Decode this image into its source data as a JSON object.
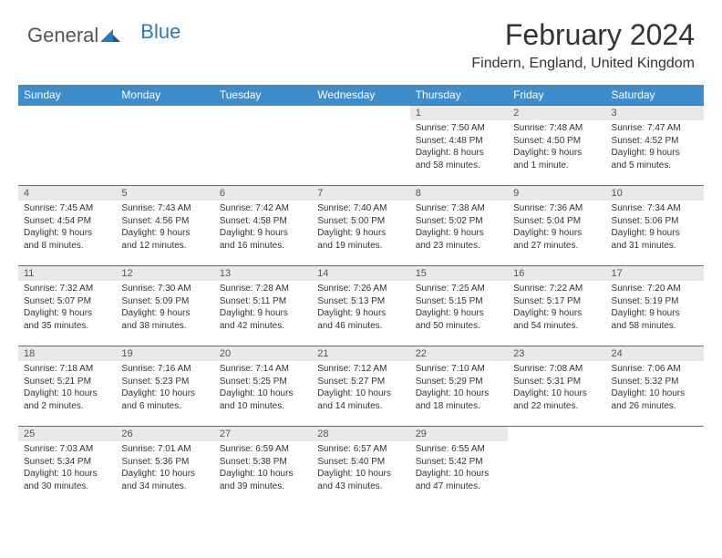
{
  "logo": {
    "t1": "General",
    "t2": "Blue"
  },
  "colors": {
    "header_bg": "#3f8cca",
    "header_text": "#ffffff",
    "daynum_bg": "#e9e9e9",
    "border": "#2a7ab9",
    "logo_gray": "#555555",
    "logo_blue": "#2a7ab9",
    "text": "#333333"
  },
  "title": "February 2024",
  "location": "Findern, England, United Kingdom",
  "weekdays": [
    "Sunday",
    "Monday",
    "Tuesday",
    "Wednesday",
    "Thursday",
    "Friday",
    "Saturday"
  ],
  "weeks": [
    [
      {
        "n": "",
        "sr": "",
        "ss": "",
        "d1": "",
        "d2": ""
      },
      {
        "n": "",
        "sr": "",
        "ss": "",
        "d1": "",
        "d2": ""
      },
      {
        "n": "",
        "sr": "",
        "ss": "",
        "d1": "",
        "d2": ""
      },
      {
        "n": "",
        "sr": "",
        "ss": "",
        "d1": "",
        "d2": ""
      },
      {
        "n": "1",
        "sr": "Sunrise: 7:50 AM",
        "ss": "Sunset: 4:48 PM",
        "d1": "Daylight: 8 hours",
        "d2": "and 58 minutes."
      },
      {
        "n": "2",
        "sr": "Sunrise: 7:48 AM",
        "ss": "Sunset: 4:50 PM",
        "d1": "Daylight: 9 hours",
        "d2": "and 1 minute."
      },
      {
        "n": "3",
        "sr": "Sunrise: 7:47 AM",
        "ss": "Sunset: 4:52 PM",
        "d1": "Daylight: 9 hours",
        "d2": "and 5 minutes."
      }
    ],
    [
      {
        "n": "4",
        "sr": "Sunrise: 7:45 AM",
        "ss": "Sunset: 4:54 PM",
        "d1": "Daylight: 9 hours",
        "d2": "and 8 minutes."
      },
      {
        "n": "5",
        "sr": "Sunrise: 7:43 AM",
        "ss": "Sunset: 4:56 PM",
        "d1": "Daylight: 9 hours",
        "d2": "and 12 minutes."
      },
      {
        "n": "6",
        "sr": "Sunrise: 7:42 AM",
        "ss": "Sunset: 4:58 PM",
        "d1": "Daylight: 9 hours",
        "d2": "and 16 minutes."
      },
      {
        "n": "7",
        "sr": "Sunrise: 7:40 AM",
        "ss": "Sunset: 5:00 PM",
        "d1": "Daylight: 9 hours",
        "d2": "and 19 minutes."
      },
      {
        "n": "8",
        "sr": "Sunrise: 7:38 AM",
        "ss": "Sunset: 5:02 PM",
        "d1": "Daylight: 9 hours",
        "d2": "and 23 minutes."
      },
      {
        "n": "9",
        "sr": "Sunrise: 7:36 AM",
        "ss": "Sunset: 5:04 PM",
        "d1": "Daylight: 9 hours",
        "d2": "and 27 minutes."
      },
      {
        "n": "10",
        "sr": "Sunrise: 7:34 AM",
        "ss": "Sunset: 5:06 PM",
        "d1": "Daylight: 9 hours",
        "d2": "and 31 minutes."
      }
    ],
    [
      {
        "n": "11",
        "sr": "Sunrise: 7:32 AM",
        "ss": "Sunset: 5:07 PM",
        "d1": "Daylight: 9 hours",
        "d2": "and 35 minutes."
      },
      {
        "n": "12",
        "sr": "Sunrise: 7:30 AM",
        "ss": "Sunset: 5:09 PM",
        "d1": "Daylight: 9 hours",
        "d2": "and 38 minutes."
      },
      {
        "n": "13",
        "sr": "Sunrise: 7:28 AM",
        "ss": "Sunset: 5:11 PM",
        "d1": "Daylight: 9 hours",
        "d2": "and 42 minutes."
      },
      {
        "n": "14",
        "sr": "Sunrise: 7:26 AM",
        "ss": "Sunset: 5:13 PM",
        "d1": "Daylight: 9 hours",
        "d2": "and 46 minutes."
      },
      {
        "n": "15",
        "sr": "Sunrise: 7:25 AM",
        "ss": "Sunset: 5:15 PM",
        "d1": "Daylight: 9 hours",
        "d2": "and 50 minutes."
      },
      {
        "n": "16",
        "sr": "Sunrise: 7:22 AM",
        "ss": "Sunset: 5:17 PM",
        "d1": "Daylight: 9 hours",
        "d2": "and 54 minutes."
      },
      {
        "n": "17",
        "sr": "Sunrise: 7:20 AM",
        "ss": "Sunset: 5:19 PM",
        "d1": "Daylight: 9 hours",
        "d2": "and 58 minutes."
      }
    ],
    [
      {
        "n": "18",
        "sr": "Sunrise: 7:18 AM",
        "ss": "Sunset: 5:21 PM",
        "d1": "Daylight: 10 hours",
        "d2": "and 2 minutes."
      },
      {
        "n": "19",
        "sr": "Sunrise: 7:16 AM",
        "ss": "Sunset: 5:23 PM",
        "d1": "Daylight: 10 hours",
        "d2": "and 6 minutes."
      },
      {
        "n": "20",
        "sr": "Sunrise: 7:14 AM",
        "ss": "Sunset: 5:25 PM",
        "d1": "Daylight: 10 hours",
        "d2": "and 10 minutes."
      },
      {
        "n": "21",
        "sr": "Sunrise: 7:12 AM",
        "ss": "Sunset: 5:27 PM",
        "d1": "Daylight: 10 hours",
        "d2": "and 14 minutes."
      },
      {
        "n": "22",
        "sr": "Sunrise: 7:10 AM",
        "ss": "Sunset: 5:29 PM",
        "d1": "Daylight: 10 hours",
        "d2": "and 18 minutes."
      },
      {
        "n": "23",
        "sr": "Sunrise: 7:08 AM",
        "ss": "Sunset: 5:31 PM",
        "d1": "Daylight: 10 hours",
        "d2": "and 22 minutes."
      },
      {
        "n": "24",
        "sr": "Sunrise: 7:06 AM",
        "ss": "Sunset: 5:32 PM",
        "d1": "Daylight: 10 hours",
        "d2": "and 26 minutes."
      }
    ],
    [
      {
        "n": "25",
        "sr": "Sunrise: 7:03 AM",
        "ss": "Sunset: 5:34 PM",
        "d1": "Daylight: 10 hours",
        "d2": "and 30 minutes."
      },
      {
        "n": "26",
        "sr": "Sunrise: 7:01 AM",
        "ss": "Sunset: 5:36 PM",
        "d1": "Daylight: 10 hours",
        "d2": "and 34 minutes."
      },
      {
        "n": "27",
        "sr": "Sunrise: 6:59 AM",
        "ss": "Sunset: 5:38 PM",
        "d1": "Daylight: 10 hours",
        "d2": "and 39 minutes."
      },
      {
        "n": "28",
        "sr": "Sunrise: 6:57 AM",
        "ss": "Sunset: 5:40 PM",
        "d1": "Daylight: 10 hours",
        "d2": "and 43 minutes."
      },
      {
        "n": "29",
        "sr": "Sunrise: 6:55 AM",
        "ss": "Sunset: 5:42 PM",
        "d1": "Daylight: 10 hours",
        "d2": "and 47 minutes."
      },
      {
        "n": "",
        "sr": "",
        "ss": "",
        "d1": "",
        "d2": ""
      },
      {
        "n": "",
        "sr": "",
        "ss": "",
        "d1": "",
        "d2": ""
      }
    ]
  ]
}
